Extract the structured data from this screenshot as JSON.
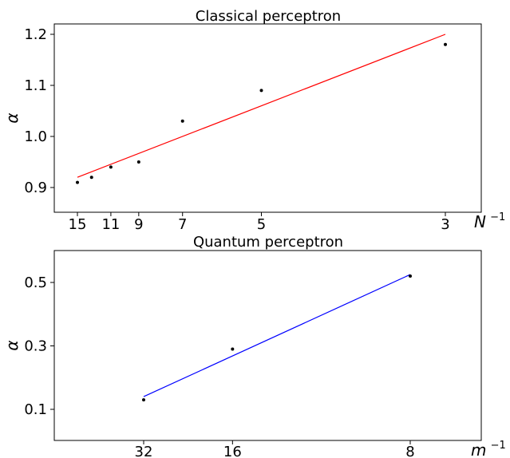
{
  "chart_data": [
    {
      "type": "scatter",
      "title": "Classical perceptron",
      "xlabel": "N",
      "xlabel_exponent": "−1",
      "ylabel": "α",
      "x_scale": "reciprocal",
      "x_ticks": [
        15,
        11,
        9,
        7,
        5,
        3
      ],
      "y_ticks": [
        "0.9",
        "1.0",
        "1.1",
        "1.2"
      ],
      "ylim": [
        0.85,
        1.22
      ],
      "grid": false,
      "series": [
        {
          "kind": "points",
          "color": "#000000",
          "points": [
            {
              "x": 15,
              "y": 0.91
            },
            {
              "x": 13,
              "y": 0.92
            },
            {
              "x": 11,
              "y": 0.94
            },
            {
              "x": 9,
              "y": 0.95
            },
            {
              "x": 7,
              "y": 1.03
            },
            {
              "x": 5,
              "y": 1.09
            },
            {
              "x": 3,
              "y": 1.18
            }
          ]
        },
        {
          "kind": "fit-line",
          "color": "#ff0000",
          "points": [
            {
              "x": 15,
              "y": 0.92
            },
            {
              "x": 3,
              "y": 1.2
            }
          ]
        }
      ]
    },
    {
      "type": "scatter",
      "title": "Quantum perceptron",
      "xlabel": "m",
      "xlabel_exponent": "−1",
      "ylabel": "α",
      "x_scale": "reciprocal",
      "x_ticks": [
        32,
        16,
        8
      ],
      "y_ticks": [
        "0.1",
        "0.3",
        "0.5"
      ],
      "ylim": [
        0.0,
        0.6
      ],
      "grid": false,
      "series": [
        {
          "kind": "points",
          "color": "#000000",
          "points": [
            {
              "x": 32,
              "y": 0.13
            },
            {
              "x": 16,
              "y": 0.29
            },
            {
              "x": 8,
              "y": 0.52
            }
          ]
        },
        {
          "kind": "fit-line",
          "color": "#0000ff",
          "points": [
            {
              "x": 32,
              "y": 0.14
            },
            {
              "x": 8,
              "y": 0.525
            }
          ]
        }
      ]
    }
  ]
}
